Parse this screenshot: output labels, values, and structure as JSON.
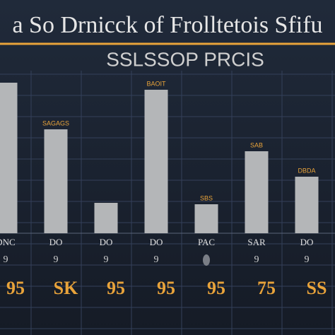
{
  "chart_data": {
    "type": "bar",
    "title": "a So Drnicck of Frolltetois Sfifu",
    "subtitle": "SSLSSOP PRCIS",
    "categories": [
      "DNC",
      "DO",
      "DO",
      "DO",
      "PAC",
      "SAR",
      "DO"
    ],
    "values": [
      213,
      147,
      43,
      203,
      41,
      116,
      80
    ],
    "ylim": [
      0,
      240
    ],
    "color": "#b4b6b8",
    "bar_labels": [
      null,
      "SAGAGS",
      null,
      "BAOIT",
      "SBS",
      "SAB",
      "DBDA"
    ],
    "marker_labels": [
      "9",
      "9",
      "9",
      "9",
      null,
      "9",
      "9"
    ],
    "code_labels": [
      "95",
      "SK",
      "95",
      "95",
      "95",
      "75",
      "SS"
    ]
  }
}
